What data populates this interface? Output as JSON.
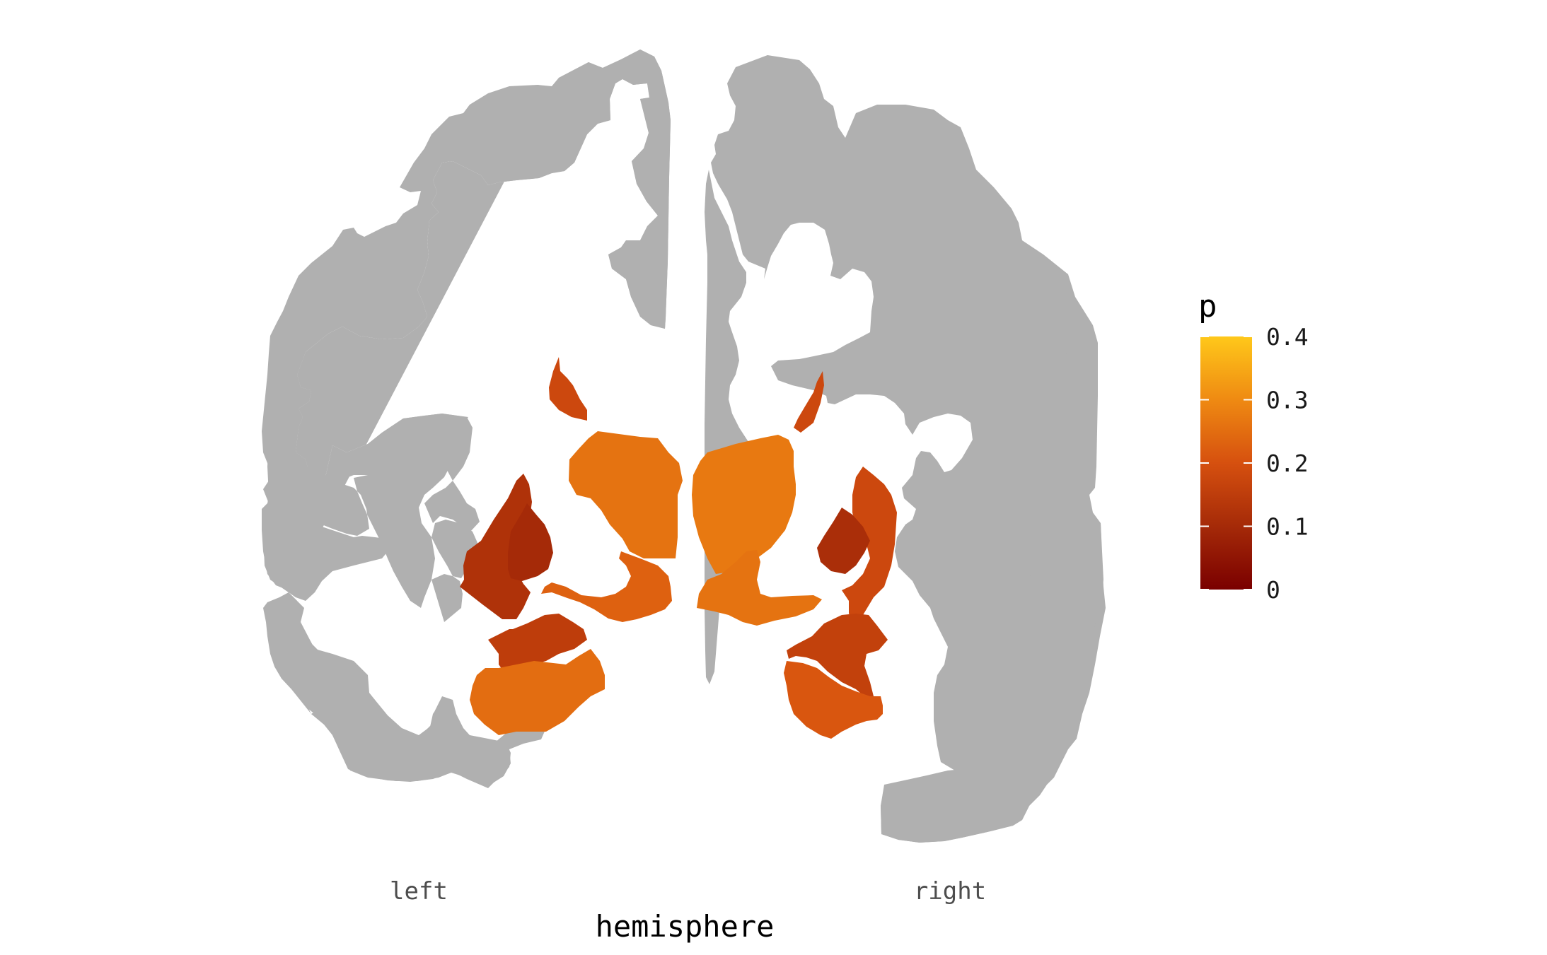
{
  "chart_data": {
    "type": "heatmap",
    "subtype": "brain-atlas-axial",
    "xlabel": "hemisphere",
    "x_ticks": [
      "left",
      "right"
    ],
    "legend": {
      "title": "p",
      "position": "right",
      "type": "colorbar",
      "range": [
        0,
        0.4
      ],
      "ticks": [
        "0.4",
        "0.3",
        "0.2",
        "0.1",
        "0"
      ],
      "tick_values": [
        0.4,
        0.3,
        0.2,
        0.1,
        0
      ]
    },
    "colors": {
      "background_tissue": "#b0b0b0",
      "scale_low": "#7a0000",
      "scale_mid": "#d6500f",
      "scale_high": "#ffc81a"
    },
    "regions": [
      {
        "hemisphere": "left",
        "value": 0.18
      },
      {
        "hemisphere": "left",
        "value": 0.26
      },
      {
        "hemisphere": "left",
        "value": 0.23
      },
      {
        "hemisphere": "left",
        "value": 0.12
      },
      {
        "hemisphere": "left",
        "value": 0.1
      },
      {
        "hemisphere": "left",
        "value": 0.15
      },
      {
        "hemisphere": "left",
        "value": 0.25
      },
      {
        "hemisphere": "right",
        "value": 0.18
      },
      {
        "hemisphere": "right",
        "value": 0.27
      },
      {
        "hemisphere": "right",
        "value": 0.26
      },
      {
        "hemisphere": "right",
        "value": 0.18
      },
      {
        "hemisphere": "right",
        "value": 0.11
      },
      {
        "hemisphere": "right",
        "value": 0.16
      },
      {
        "hemisphere": "right",
        "value": 0.21
      }
    ]
  }
}
